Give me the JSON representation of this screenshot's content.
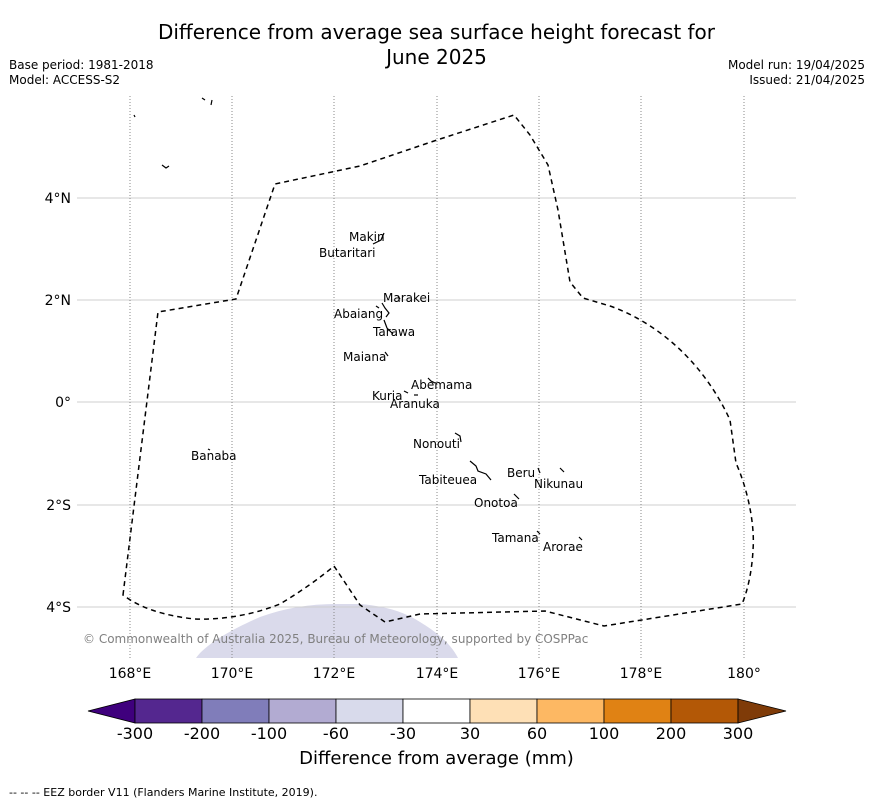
{
  "title_line1": "Difference from average sea surface height forecast for",
  "title_line2": "June 2025",
  "meta_left": [
    "Base period: 1981-2018",
    "Model: ACCESS-S2"
  ],
  "meta_right": [
    "Model run: 19/04/2025",
    "Issued: 21/04/2025"
  ],
  "axes": {
    "x_ticks": [
      "168°E",
      "170°E",
      "172°E",
      "174°E",
      "176°E",
      "178°E",
      "180°"
    ],
    "y_ticks": [
      "4°N",
      "2°N",
      "0°",
      "2°S",
      "4°S"
    ]
  },
  "places": [
    "Makin",
    "Butaritari",
    "Marakei",
    "Abaiang",
    "Tarawa",
    "Maiana",
    "Abemama",
    "Kuria",
    "Aranuka",
    "Banaba",
    "Nonouti",
    "Tabiteuea",
    "Beru",
    "Nikunau",
    "Onotoa",
    "Tamana",
    "Arorae"
  ],
  "copyright": "© Commonwealth of Australia 2025, Bureau of Meteorology, supported by COSPPac",
  "colorbar": {
    "label": "Difference from average (mm)",
    "ticks": [
      "-300",
      "-200",
      "-100",
      "-60",
      "-30",
      "30",
      "60",
      "100",
      "200",
      "300"
    ],
    "colors": [
      "#3f007d",
      "#54278f",
      "#807dba",
      "#bcbddc",
      "#dadaeb",
      "#ffffff",
      "#fee0b6",
      "#fdb863",
      "#e08214",
      "#b35806",
      "#7f3b08"
    ]
  },
  "anomaly_region_color": "#dadaeb",
  "footer": "--  --  -- EEZ border V11 (Flanders Marine Institute, 2019)."
}
